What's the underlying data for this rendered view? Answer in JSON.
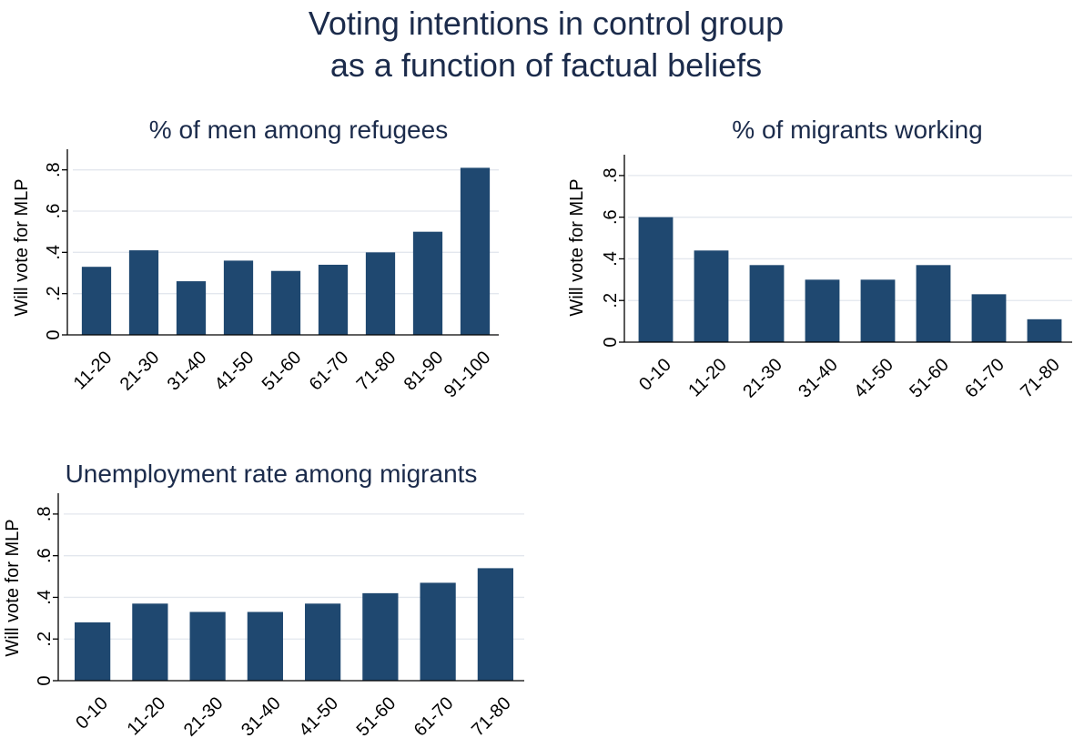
{
  "title_lines": [
    "Voting intentions in control group",
    "as a function of factual beliefs"
  ],
  "colors": {
    "bar": "#1f4870",
    "title": "#1b2b4b",
    "grid": "#e3e7ee"
  },
  "chart_data": [
    {
      "type": "bar",
      "title": "% of men among refugees",
      "ylabel": "Will vote for MLP",
      "ylim": [
        0,
        0.9
      ],
      "yticks": [
        0,
        0.2,
        0.4,
        0.6,
        0.8
      ],
      "ytick_labels": [
        "0",
        ".2",
        ".4",
        ".6",
        ".8"
      ],
      "grid": true,
      "categories": [
        "11-20",
        "21-30",
        "31-40",
        "41-50",
        "51-60",
        "61-70",
        "71-80",
        "81-90",
        "91-100"
      ],
      "values": [
        0.33,
        0.41,
        0.26,
        0.36,
        0.31,
        0.34,
        0.4,
        0.5,
        0.81
      ]
    },
    {
      "type": "bar",
      "title": "% of migrants working",
      "ylabel": "Will vote for MLP",
      "ylim": [
        0,
        0.9
      ],
      "yticks": [
        0,
        0.2,
        0.4,
        0.6,
        0.8
      ],
      "ytick_labels": [
        "0",
        ".2",
        ".4",
        ".6",
        ".8"
      ],
      "grid": true,
      "categories": [
        "0-10",
        "11-20",
        "21-30",
        "31-40",
        "41-50",
        "51-60",
        "61-70",
        "71-80"
      ],
      "values": [
        0.6,
        0.44,
        0.37,
        0.3,
        0.3,
        0.37,
        0.23,
        0.11
      ]
    },
    {
      "type": "bar",
      "title": "Unemployment rate among migrants",
      "ylabel": "Will vote for MLP",
      "ylim": [
        0,
        0.9
      ],
      "yticks": [
        0,
        0.2,
        0.4,
        0.6,
        0.8
      ],
      "ytick_labels": [
        "0",
        ".2",
        ".4",
        ".6",
        ".8"
      ],
      "grid": true,
      "categories": [
        "0-10",
        "11-20",
        "21-30",
        "31-40",
        "41-50",
        "51-60",
        "61-70",
        "71-80"
      ],
      "values": [
        0.28,
        0.37,
        0.33,
        0.33,
        0.37,
        0.42,
        0.47,
        0.54
      ]
    }
  ]
}
